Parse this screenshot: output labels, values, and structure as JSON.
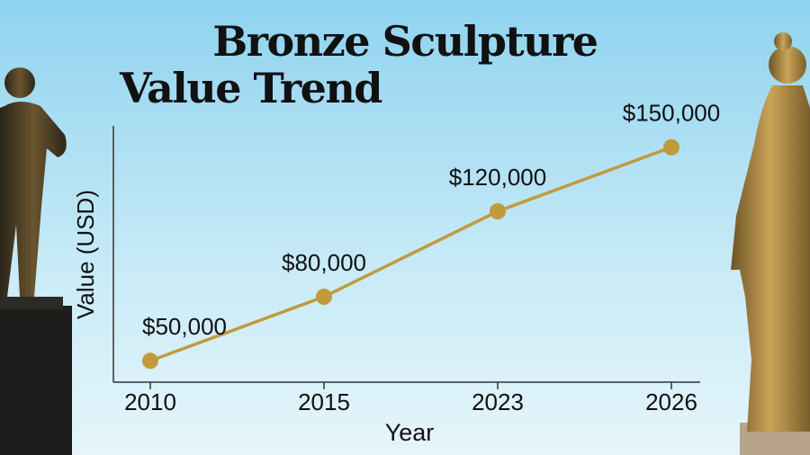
{
  "chart_data": {
    "type": "line",
    "title": [
      "Bronze Sculpture",
      "Value Trend"
    ],
    "x_label": "Year",
    "y_label": "Value (USD)",
    "categories": [
      "2010",
      "2015",
      "2023",
      "2026"
    ],
    "series": [
      {
        "name": "Value",
        "color": "#c19a3c",
        "values": [
          50000,
          80000,
          120000,
          150000
        ],
        "value_labels": [
          "$50,000",
          "$80,000",
          "$120,000",
          "$150,000"
        ]
      }
    ],
    "ylim": [
      40000,
      160000
    ]
  }
}
